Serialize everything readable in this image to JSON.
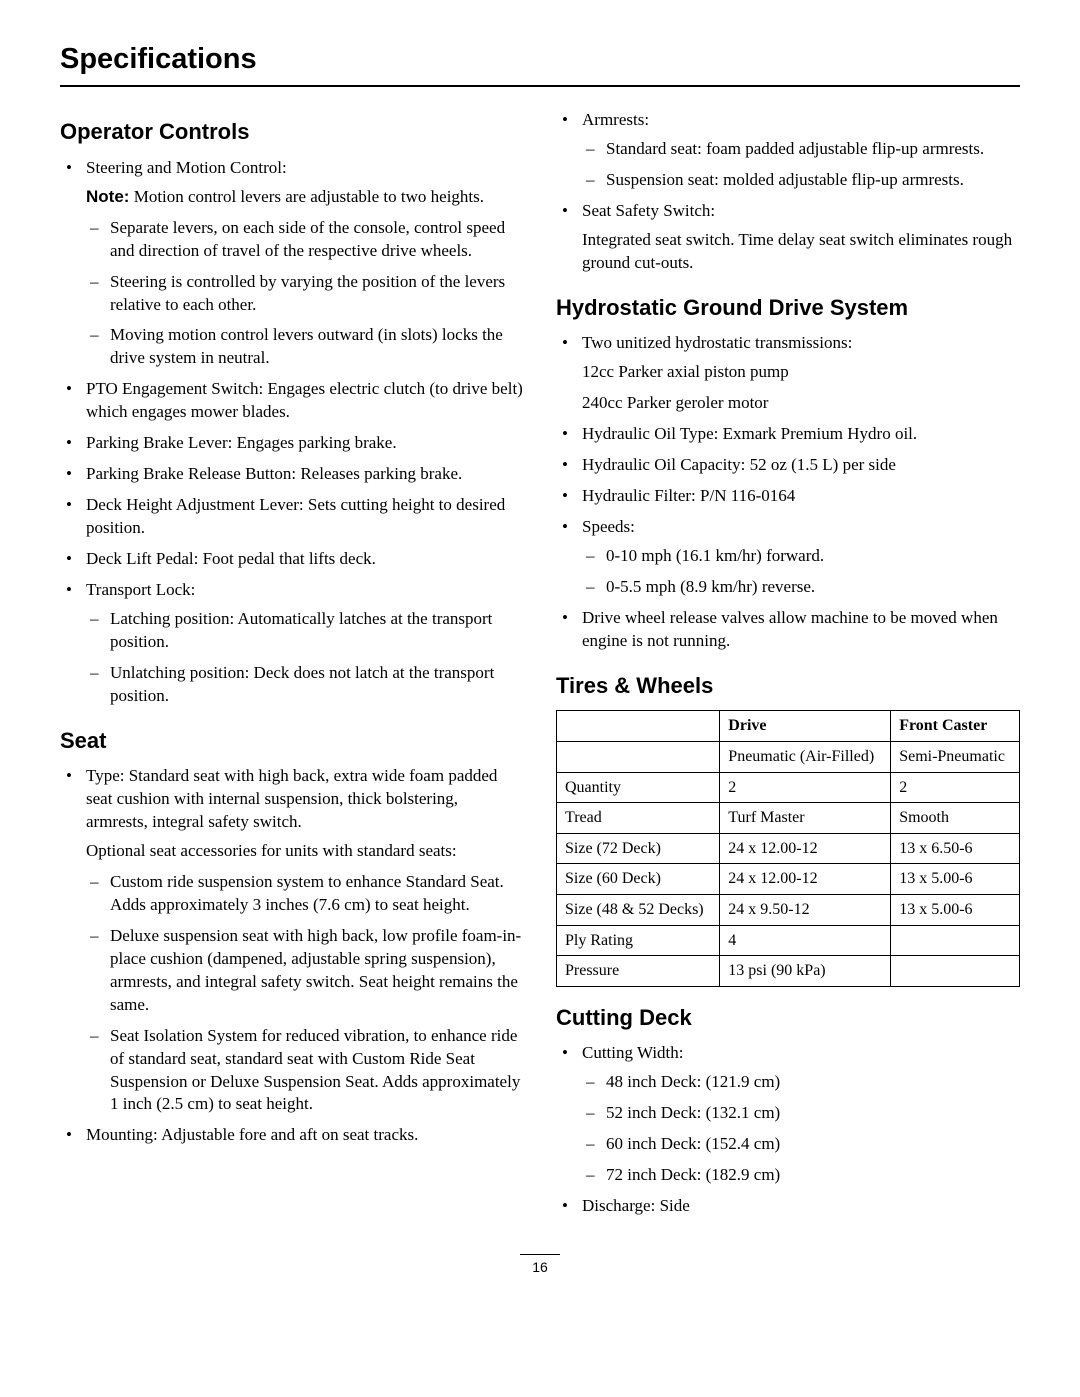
{
  "page_title": "Specifications",
  "page_number": "16",
  "left": {
    "operator_controls": {
      "heading": "Operator Controls",
      "items": [
        {
          "text": "Steering and Motion Control:",
          "note_label": "Note:",
          "note_text": "Motion control levers are adjustable to two heights.",
          "sub": [
            "Separate levers, on each side of the console, control speed and direction of travel of the respective drive wheels.",
            "Steering is controlled by varying the position of the levers relative to each other.",
            "Moving motion control levers outward (in slots) locks the drive system in neutral."
          ]
        },
        {
          "text": "PTO Engagement Switch: Engages electric clutch (to drive belt) which engages mower blades."
        },
        {
          "text": "Parking Brake Lever: Engages parking brake."
        },
        {
          "text": "Parking Brake Release Button: Releases parking brake."
        },
        {
          "text": "Deck Height Adjustment Lever: Sets cutting height to desired position."
        },
        {
          "text": "Deck Lift Pedal: Foot pedal that lifts deck."
        },
        {
          "text": "Transport Lock:",
          "sub": [
            " Latching position: Automatically latches at the transport position.",
            "Unlatching position: Deck does not latch at the transport position."
          ]
        }
      ]
    },
    "seat": {
      "heading": "Seat",
      "items": [
        {
          "text": "Type: Standard seat with high back, extra wide foam padded seat cushion with internal suspension, thick bolstering, armrests, integral safety switch.",
          "para_after": "Optional seat accessories for units with standard seats:",
          "sub": [
            "Custom ride suspension system to enhance Standard Seat. Adds approximately 3 inches (7.6 cm) to seat height.",
            "Deluxe suspension seat with high back, low profile foam-in-place cushion (dampened, adjustable spring suspension), armrests, and integral safety switch. Seat height remains the same.",
            "Seat Isolation System for reduced vibration, to enhance ride of standard seat, standard seat with Custom Ride Seat Suspension or Deluxe Suspension Seat. Adds approximately 1 inch (2.5 cm) to seat height."
          ]
        },
        {
          "text": "Mounting: Adjustable fore and aft on seat tracks."
        }
      ]
    }
  },
  "right": {
    "seat_cont": {
      "items": [
        {
          "text": "Armrests:",
          "sub": [
            "Standard seat: foam padded adjustable flip-up armrests.",
            "Suspension seat: molded adjustable flip-up armrests."
          ]
        },
        {
          "text": "Seat Safety Switch:",
          "para_after": "Integrated seat switch. Time delay seat switch eliminates rough ground cut-outs."
        }
      ]
    },
    "hydro": {
      "heading": "Hydrostatic Ground Drive System",
      "items": [
        {
          "text": "Two unitized hydrostatic transmissions:",
          "paras": [
            "12cc Parker axial piston pump",
            "240cc Parker geroler motor"
          ]
        },
        {
          "text": "Hydraulic Oil Type: Exmark Premium Hydro oil."
        },
        {
          "text": "Hydraulic Oil Capacity: 52 oz (1.5 L) per side"
        },
        {
          "text": "Hydraulic Filter: P/N 116-0164"
        },
        {
          "text": "Speeds:",
          "sub": [
            "0-10 mph (16.1 km/hr) forward.",
            "0-5.5 mph (8.9 km/hr) reverse."
          ]
        },
        {
          "text": "Drive wheel release valves allow machine to be moved when engine is not running."
        }
      ]
    },
    "tires": {
      "heading": "Tires & Wheels",
      "table": {
        "headers": [
          "",
          "Drive",
          "Front Caster"
        ],
        "rows": [
          [
            "",
            "Pneumatic (Air-Filled)",
            "Semi-Pneumatic"
          ],
          [
            "Quantity",
            "2",
            "2"
          ],
          [
            "Tread",
            "Turf Master",
            "Smooth"
          ],
          [
            "Size (72 Deck)",
            "24 x 12.00-12",
            "13 x 6.50-6"
          ],
          [
            "Size (60 Deck)",
            "24 x 12.00-12",
            "13 x 5.00-6"
          ],
          [
            "Size (48 & 52 Decks)",
            "24 x 9.50-12",
            "13 x 5.00-6"
          ],
          [
            "Ply Rating",
            "4",
            ""
          ],
          [
            "Pressure",
            "13 psi (90 kPa)",
            ""
          ]
        ]
      }
    },
    "cutting": {
      "heading": "Cutting Deck",
      "items": [
        {
          "text": "Cutting Width:",
          "sub": [
            "48 inch Deck: (121.9 cm)",
            "52 inch Deck: (132.1 cm)",
            "60 inch Deck: (152.4 cm)",
            "72 inch Deck: (182.9 cm)"
          ]
        },
        {
          "text": "Discharge: Side"
        }
      ]
    }
  }
}
